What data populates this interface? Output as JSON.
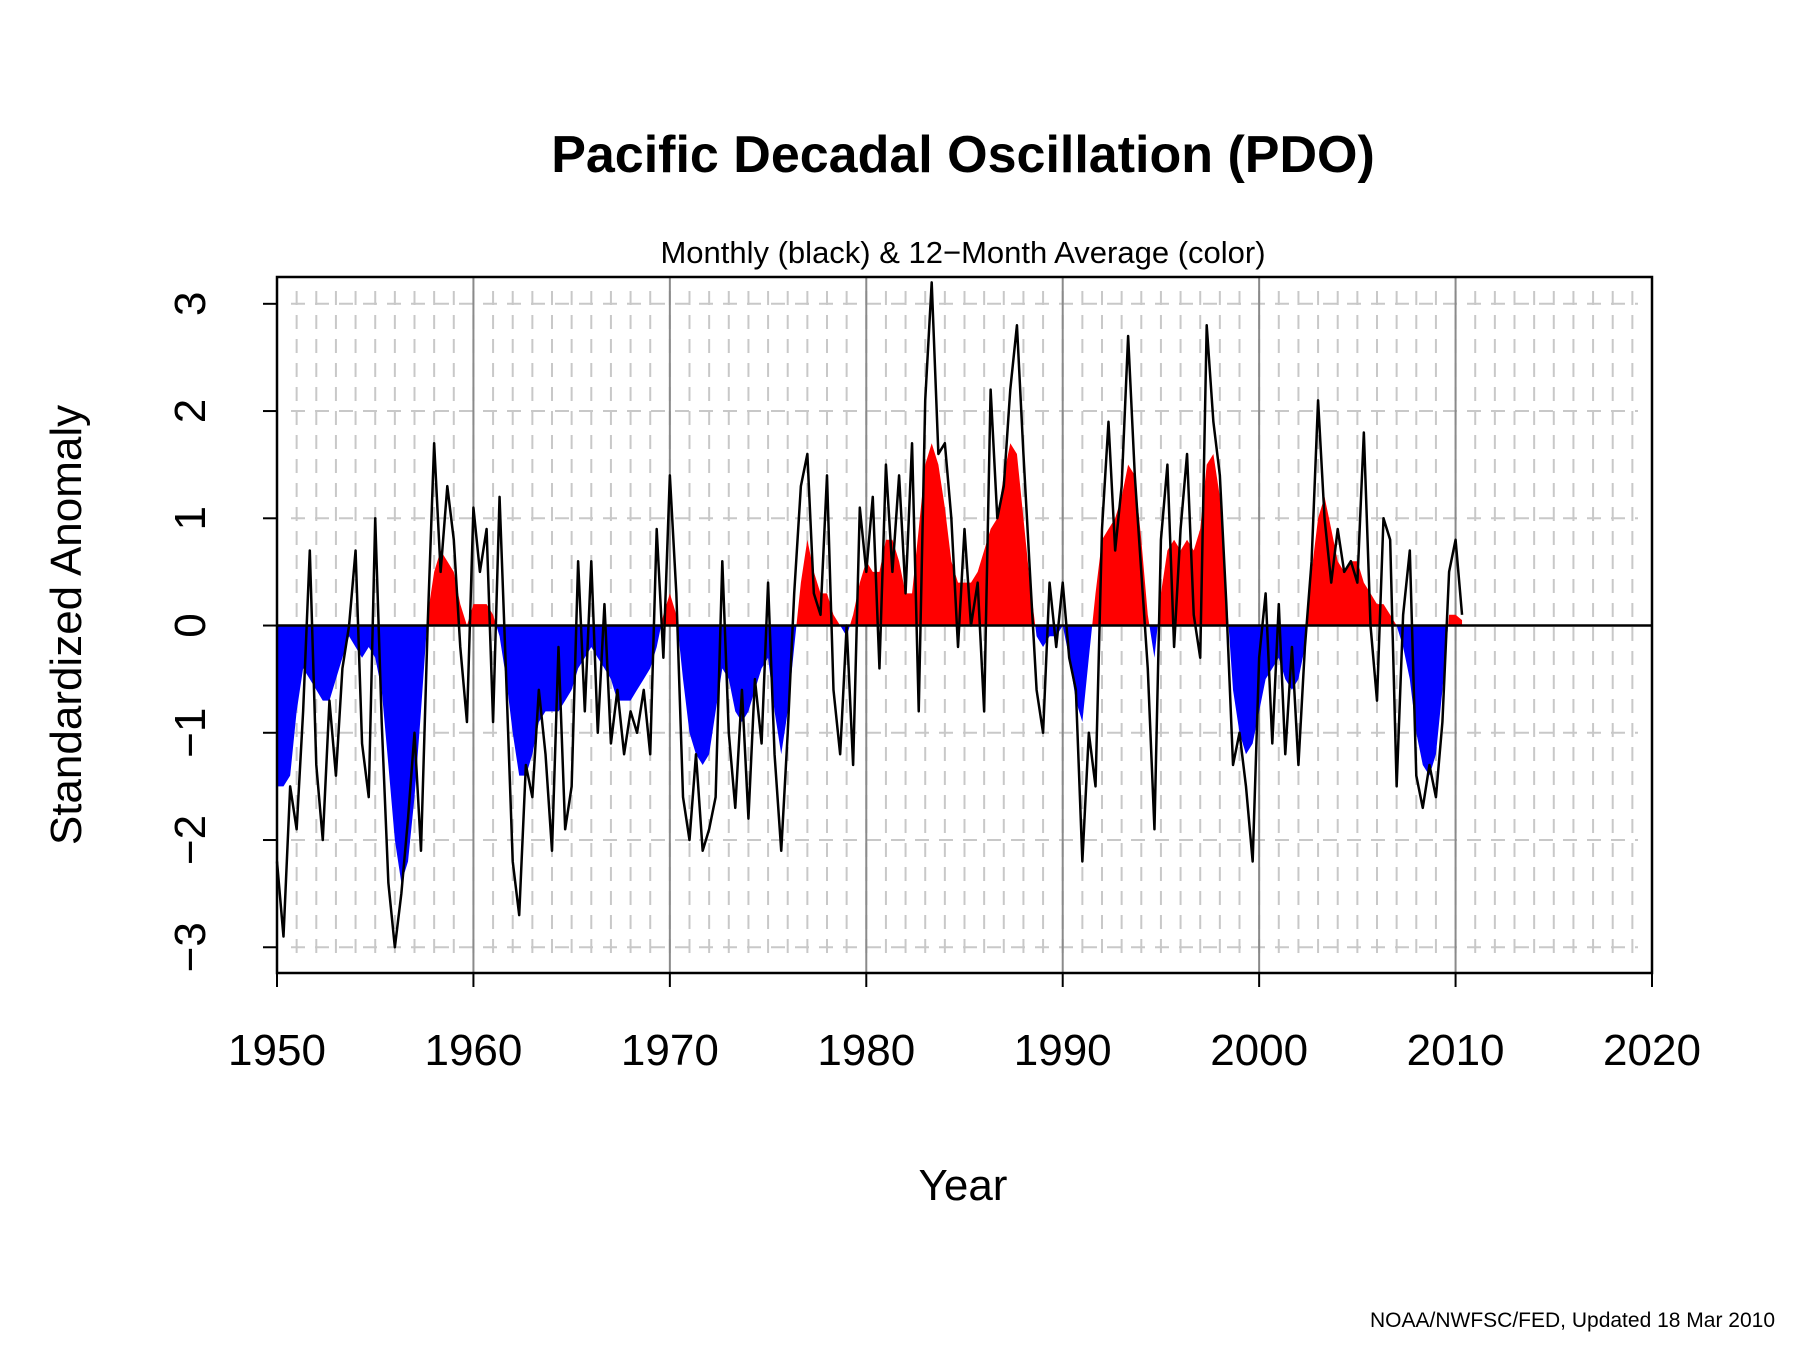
{
  "chart_data": {
    "type": "area",
    "title": "Pacific Decadal Oscillation (PDO)",
    "subtitle": "Monthly (black) & 12−Month Average (color)",
    "x_label": "Year",
    "y_label": "Standardized Anomaly",
    "footnote": "NOAA/NWFSC/FED, Updated  18 Mar 2010",
    "xlim": [
      1950,
      2020
    ],
    "ylim": [
      -3.24,
      3.25
    ],
    "xticks": [
      1950,
      1960,
      1970,
      1980,
      1990,
      2000,
      2010,
      2020
    ],
    "yticks": [
      {
        "value": -3,
        "label": "−3"
      },
      {
        "value": -2,
        "label": "−2"
      },
      {
        "value": -1,
        "label": "−1"
      },
      0,
      1,
      2,
      3
    ],
    "grid": true,
    "minor_grid_step": 1,
    "x": [
      1950,
      1950.33,
      1950.67,
      1951,
      1951.33,
      1951.67,
      1952,
      1952.33,
      1952.67,
      1953,
      1953.33,
      1953.67,
      1954,
      1954.33,
      1954.67,
      1955,
      1955.33,
      1955.67,
      1956,
      1956.33,
      1956.67,
      1957,
      1957.33,
      1957.67,
      1958,
      1958.33,
      1958.67,
      1959,
      1959.33,
      1959.67,
      1960,
      1960.33,
      1960.67,
      1961,
      1961.33,
      1961.67,
      1962,
      1962.33,
      1962.67,
      1963,
      1963.33,
      1963.67,
      1964,
      1964.33,
      1964.67,
      1965,
      1965.33,
      1965.67,
      1966,
      1966.33,
      1966.67,
      1967,
      1967.33,
      1967.67,
      1968,
      1968.33,
      1968.67,
      1969,
      1969.33,
      1969.67,
      1970,
      1970.33,
      1970.67,
      1971,
      1971.33,
      1971.67,
      1972,
      1972.33,
      1972.67,
      1973,
      1973.33,
      1973.67,
      1974,
      1974.33,
      1974.67,
      1975,
      1975.33,
      1975.67,
      1976,
      1976.33,
      1976.67,
      1977,
      1977.33,
      1977.67,
      1978,
      1978.33,
      1978.67,
      1979,
      1979.33,
      1979.67,
      1980,
      1980.33,
      1980.67,
      1981,
      1981.33,
      1981.67,
      1982,
      1982.33,
      1982.67,
      1983,
      1983.33,
      1983.67,
      1984,
      1984.33,
      1984.67,
      1985,
      1985.33,
      1985.67,
      1986,
      1986.33,
      1986.67,
      1987,
      1987.33,
      1987.67,
      1988,
      1988.33,
      1988.67,
      1989,
      1989.33,
      1989.67,
      1990,
      1990.33,
      1990.67,
      1991,
      1991.33,
      1991.67,
      1992,
      1992.33,
      1992.67,
      1993,
      1993.33,
      1993.67,
      1994,
      1994.33,
      1994.67,
      1995,
      1995.33,
      1995.67,
      1996,
      1996.33,
      1996.67,
      1997,
      1997.33,
      1997.67,
      1998,
      1998.33,
      1998.67,
      1999,
      1999.33,
      1999.67,
      2000,
      2000.33,
      2000.67,
      2001,
      2001.33,
      2001.67,
      2002,
      2002.33,
      2002.67,
      2003,
      2003.33,
      2003.67,
      2004,
      2004.33,
      2004.67,
      2005,
      2005.33,
      2005.67,
      2006,
      2006.33,
      2006.67,
      2007,
      2007.33,
      2007.67,
      2008,
      2008.33,
      2008.67,
      2009,
      2009.33,
      2009.67,
      2010,
      2010.33
    ],
    "series": [
      {
        "color": "#000000",
        "values": [
          -2.2,
          -2.9,
          -1.5,
          -1.9,
          -0.8,
          0.7,
          -1.3,
          -2.0,
          -0.7,
          -1.4,
          -0.4,
          0.0,
          0.7,
          -1.1,
          -1.6,
          1.0,
          -0.9,
          -2.4,
          -3.0,
          -2.5,
          -1.8,
          -1.0,
          -2.1,
          0.0,
          1.7,
          0.5,
          1.3,
          0.8,
          -0.2,
          -0.9,
          1.1,
          0.5,
          0.9,
          -0.9,
          1.2,
          -0.5,
          -2.2,
          -2.7,
          -1.3,
          -1.6,
          -0.6,
          -1.2,
          -2.1,
          -0.2,
          -1.9,
          -1.5,
          0.6,
          -0.8,
          0.6,
          -1.0,
          0.2,
          -1.1,
          -0.6,
          -1.2,
          -0.8,
          -1.0,
          -0.6,
          -1.2,
          0.9,
          -0.3,
          1.4,
          0.3,
          -1.6,
          -2.0,
          -1.2,
          -2.1,
          -1.9,
          -1.6,
          0.6,
          -1.0,
          -1.7,
          -0.6,
          -1.8,
          -0.5,
          -1.1,
          0.4,
          -1.2,
          -2.1,
          -1.0,
          0.3,
          1.3,
          1.6,
          0.3,
          0.1,
          1.4,
          -0.6,
          -1.2,
          0.0,
          -1.3,
          1.1,
          0.5,
          1.2,
          -0.4,
          1.5,
          0.5,
          1.4,
          0.3,
          1.7,
          -0.8,
          2.1,
          3.2,
          1.6,
          1.7,
          1.0,
          -0.2,
          0.9,
          0.0,
          0.4,
          -0.8,
          2.2,
          1.0,
          1.3,
          2.2,
          2.8,
          1.6,
          0.5,
          -0.6,
          -1.0,
          0.4,
          -0.2,
          0.4,
          -0.3,
          -0.6,
          -2.2,
          -1.0,
          -1.5,
          0.9,
          1.9,
          0.7,
          1.3,
          2.7,
          1.4,
          0.5,
          -0.4,
          -1.9,
          0.8,
          1.5,
          -0.2,
          0.9,
          1.6,
          0.1,
          -0.3,
          2.8,
          1.9,
          1.4,
          0.2,
          -1.3,
          -1.0,
          -1.5,
          -2.2,
          -0.3,
          0.3,
          -1.1,
          0.2,
          -1.2,
          -0.2,
          -1.3,
          -0.2,
          0.6,
          2.1,
          1.0,
          0.4,
          0.9,
          0.5,
          0.6,
          0.4,
          1.8,
          0.0,
          -0.7,
          1.0,
          0.8,
          -1.5,
          0.1,
          0.7,
          -1.4,
          -1.7,
          -1.3,
          -1.6,
          -0.9,
          0.5,
          0.8,
          0.1
        ]
      },
      {
        "positive_color": "#ff0000",
        "negative_color": "#0000ff",
        "values": [
          -1.5,
          -1.5,
          -1.4,
          -0.8,
          -0.4,
          -0.5,
          -0.6,
          -0.7,
          -0.7,
          -0.5,
          -0.3,
          -0.1,
          -0.2,
          -0.3,
          -0.2,
          -0.3,
          -0.6,
          -1.3,
          -2.0,
          -2.4,
          -2.2,
          -1.6,
          -0.8,
          0.1,
          0.5,
          0.7,
          0.6,
          0.5,
          0.2,
          0.0,
          0.2,
          0.2,
          0.2,
          0.1,
          -0.1,
          -0.5,
          -1.0,
          -1.4,
          -1.4,
          -1.2,
          -0.9,
          -0.8,
          -0.8,
          -0.8,
          -0.7,
          -0.6,
          -0.4,
          -0.3,
          -0.2,
          -0.3,
          -0.4,
          -0.5,
          -0.7,
          -0.7,
          -0.7,
          -0.6,
          -0.5,
          -0.4,
          -0.2,
          0.1,
          0.3,
          0.1,
          -0.5,
          -1.0,
          -1.2,
          -1.3,
          -1.2,
          -0.8,
          -0.4,
          -0.5,
          -0.8,
          -0.9,
          -0.8,
          -0.6,
          -0.4,
          -0.3,
          -0.8,
          -1.2,
          -0.8,
          -0.2,
          0.4,
          0.8,
          0.5,
          0.3,
          0.3,
          0.1,
          0.0,
          -0.1,
          0.1,
          0.4,
          0.6,
          0.5,
          0.5,
          0.8,
          0.8,
          0.6,
          0.3,
          0.3,
          0.9,
          1.5,
          1.7,
          1.5,
          1.1,
          0.6,
          0.4,
          0.4,
          0.4,
          0.5,
          0.7,
          0.9,
          1.0,
          1.4,
          1.7,
          1.6,
          1.0,
          0.4,
          -0.1,
          -0.2,
          -0.1,
          -0.1,
          0.0,
          -0.3,
          -0.7,
          -0.9,
          -0.3,
          0.3,
          0.8,
          0.9,
          1.0,
          1.2,
          1.5,
          1.4,
          0.8,
          0.1,
          -0.3,
          0.3,
          0.7,
          0.8,
          0.7,
          0.8,
          0.7,
          0.9,
          1.5,
          1.6,
          1.2,
          0.3,
          -0.6,
          -1.0,
          -1.2,
          -1.1,
          -0.8,
          -0.5,
          -0.4,
          -0.3,
          -0.5,
          -0.6,
          -0.5,
          -0.2,
          0.5,
          1.0,
          1.2,
          0.9,
          0.6,
          0.5,
          0.6,
          0.6,
          0.4,
          0.3,
          0.2,
          0.2,
          0.1,
          0.0,
          -0.2,
          -0.5,
          -1.0,
          -1.3,
          -1.4,
          -1.2,
          -0.6,
          0.1,
          0.1,
          0.05
        ]
      }
    ]
  }
}
